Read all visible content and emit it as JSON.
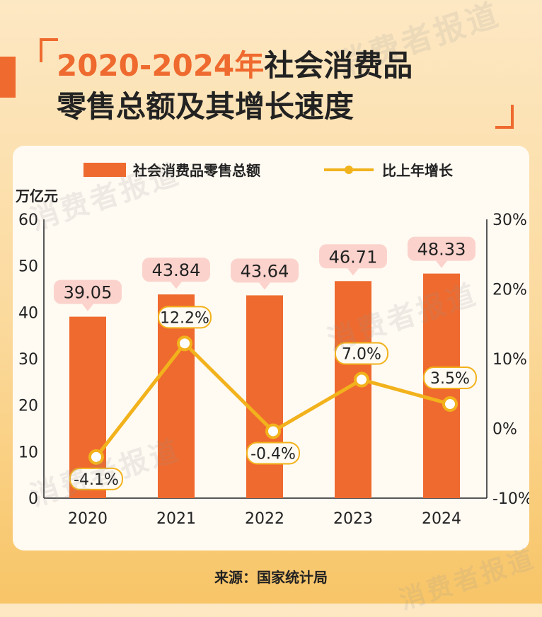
{
  "title": {
    "part1": "2020-2024年",
    "part2": "社会消费品",
    "line2": "零售总额及其增长速度"
  },
  "watermark": "消费者报道",
  "source": "来源：国家统计局",
  "colors": {
    "bar": "#ef6a2e",
    "line": "#f2b21c",
    "label_bg": "#fbd3cc"
  },
  "chart_data": {
    "type": "bar",
    "categories": [
      "2020",
      "2021",
      "2022",
      "2023",
      "2024"
    ],
    "left_axis_unit": "万亿元",
    "ylim": [
      0,
      60
    ],
    "yticks": [
      "0",
      "10",
      "20",
      "30",
      "40",
      "50",
      "60"
    ],
    "y2lim": [
      -10,
      30
    ],
    "y2ticks": [
      "-10%",
      "0%",
      "10%",
      "20%",
      "30%"
    ],
    "legend": {
      "placement": "top"
    },
    "series": [
      {
        "name": "社会消费品零售总额",
        "type": "bar",
        "axis": "left",
        "values": [
          39.05,
          43.84,
          43.64,
          46.71,
          48.33
        ],
        "labels": [
          "39.05",
          "43.84",
          "43.64",
          "46.71",
          "48.33"
        ]
      },
      {
        "name": "比上年增长",
        "type": "line",
        "axis": "right",
        "values": [
          -4.1,
          12.2,
          -0.4,
          7.0,
          3.5
        ],
        "labels": [
          "-4.1%",
          "12.2%",
          "-0.4%",
          "7.0%",
          "3.5%"
        ]
      }
    ]
  }
}
